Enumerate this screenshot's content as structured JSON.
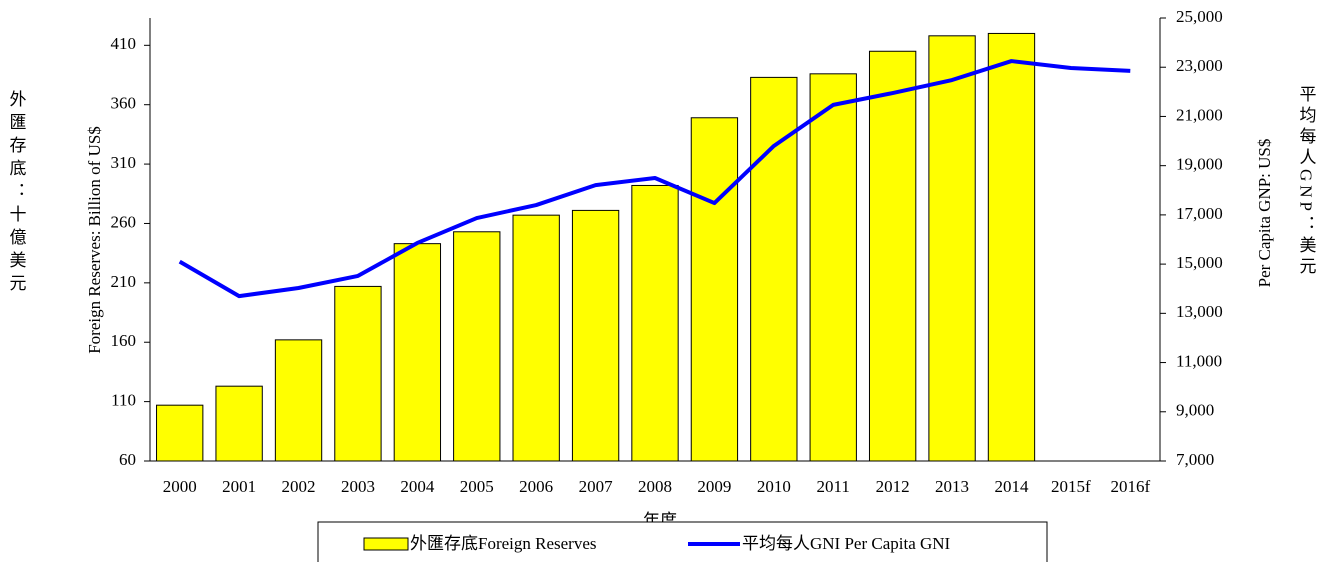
{
  "chart_data": {
    "type": "bar-line",
    "xlabel": "年度",
    "ylabel": "Foreign Reserves: Billion of US$",
    "ylabel_zh": "外匯存底：十億美元",
    "y2label": "Per Capita GNP: US$",
    "y2label_zh": "平均每人GNP：美元",
    "categories": [
      "2000",
      "2001",
      "2002",
      "2003",
      "2004",
      "2005",
      "2006",
      "2007",
      "2008",
      "2009",
      "2010",
      "2011",
      "2012",
      "2013",
      "2014",
      "2015f",
      "2016f"
    ],
    "series": [
      {
        "name": "外匯存底Foreign Reserves",
        "kind": "bar",
        "color": "#ffff00",
        "values": [
          107,
          123,
          162,
          207,
          243,
          253,
          267,
          271,
          292,
          349,
          383,
          386,
          405,
          418,
          420,
          60,
          60
        ]
      },
      {
        "name": "平均每人GNI Per Capita GNI",
        "kind": "line",
        "color": "#0000ff",
        "axis": "y2",
        "values": [
          15100,
          13700,
          14030,
          14520,
          15860,
          16870,
          17400,
          18210,
          18500,
          17480,
          19800,
          21470,
          21950,
          22480,
          23250,
          22970,
          22850
        ]
      }
    ],
    "ylim": [
      60,
      433
    ],
    "yticks": [
      60,
      110,
      160,
      210,
      260,
      310,
      360,
      410
    ],
    "y2lim": [
      7000,
      25000
    ],
    "y2ticks": [
      {
        "value": 7000,
        "label": "7,000"
      },
      {
        "value": 9000,
        "label": "9,000"
      },
      {
        "value": 11000,
        "label": "11,000"
      },
      {
        "value": 13000,
        "label": "13,000"
      },
      {
        "value": 15000,
        "label": "15,000"
      },
      {
        "value": 17000,
        "label": "17,000"
      },
      {
        "value": 19000,
        "label": "19,000"
      },
      {
        "value": 21000,
        "label": "21,000"
      },
      {
        "value": 23000,
        "label": "23,000"
      },
      {
        "value": 25000,
        "label": "25,000"
      }
    ]
  }
}
